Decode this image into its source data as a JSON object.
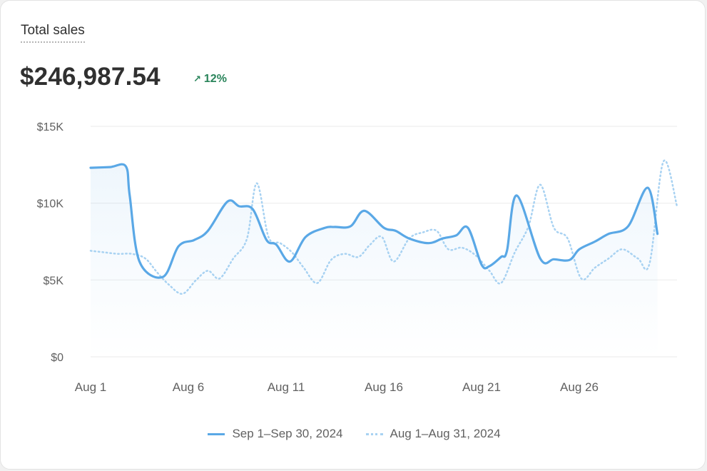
{
  "card": {
    "title": "Total sales",
    "total": "$246,987.54",
    "change_arrow": "↗",
    "change_pct": "12%",
    "change_color": "#29845a"
  },
  "legend": {
    "current_label": "Sep 1–Sep 30, 2024",
    "previous_label": "Aug 1–Aug 31, 2024"
  },
  "colors": {
    "current": "#5aa8e6",
    "previous": "#a8d2f2",
    "grid": "#eeeeee"
  },
  "chart_data": {
    "type": "line",
    "ylim": [
      0,
      15000
    ],
    "y_ticks": [
      {
        "value": 0,
        "label": "$0"
      },
      {
        "value": 5000,
        "label": "$5K"
      },
      {
        "value": 10000,
        "label": "$10K"
      },
      {
        "value": 15000,
        "label": "$15K"
      }
    ],
    "x_ticks": [
      {
        "day": 1,
        "label": "Aug 1"
      },
      {
        "day": 6,
        "label": "Aug 6"
      },
      {
        "day": 11,
        "label": "Aug 11"
      },
      {
        "day": 16,
        "label": "Aug 16"
      },
      {
        "day": 21,
        "label": "Aug 21"
      },
      {
        "day": 26,
        "label": "Aug 26"
      }
    ],
    "x_days": [
      1,
      31
    ],
    "series": [
      {
        "name": "Sep 1–Sep 30, 2024",
        "style": "solid",
        "x": [
          1,
          2,
          2.8,
          3,
          3.5,
          4.7,
          5.5,
          6.3,
          7,
          8,
          8.6,
          9.3,
          10,
          10.5,
          11.2,
          12,
          13,
          13.5,
          14.3,
          15,
          16,
          16.6,
          17.3,
          18.3,
          19,
          19.7,
          20.3,
          21,
          21.4,
          22,
          22.3,
          22.8,
          24,
          24.7,
          25.5,
          26,
          26.8,
          27.5,
          28.5,
          29.5,
          30
        ],
        "values": [
          12300,
          12350,
          12400,
          10500,
          6200,
          5200,
          7200,
          7600,
          8200,
          10100,
          9800,
          9600,
          7600,
          7300,
          6200,
          7800,
          8400,
          8450,
          8500,
          9500,
          8400,
          8200,
          7700,
          7400,
          7700,
          7900,
          8400,
          6000,
          5900,
          6500,
          6900,
          10500,
          6400,
          6350,
          6300,
          7000,
          7500,
          8000,
          8500,
          11000,
          8000
        ]
      },
      {
        "name": "Aug 1–Aug 31, 2024",
        "style": "dotted",
        "x": [
          1,
          1.7,
          2.4,
          3.1,
          3.8,
          4.4,
          5,
          5.7,
          6.4,
          7,
          7.6,
          8.3,
          9,
          9.5,
          10.1,
          10.7,
          11.3,
          11.9,
          12.6,
          13.3,
          14,
          14.7,
          15.3,
          15.9,
          16.5,
          17.3,
          18,
          18.7,
          19.3,
          20,
          20.7,
          21.4,
          22,
          22.7,
          23.4,
          24,
          24.7,
          25.4,
          26.1,
          26.8,
          27.5,
          28.2,
          29,
          29.6,
          30.3,
          31
        ],
        "values": [
          6900,
          6800,
          6700,
          6700,
          6400,
          5500,
          4700,
          4100,
          5000,
          5600,
          5100,
          6400,
          7700,
          11300,
          7800,
          7400,
          6800,
          5800,
          4800,
          6300,
          6700,
          6500,
          7300,
          7800,
          6200,
          7700,
          8100,
          8200,
          7000,
          7100,
          6600,
          5600,
          4800,
          6800,
          8500,
          11200,
          8400,
          7700,
          5100,
          5800,
          6400,
          7000,
          6400,
          6100,
          12700,
          9800
        ]
      }
    ]
  }
}
